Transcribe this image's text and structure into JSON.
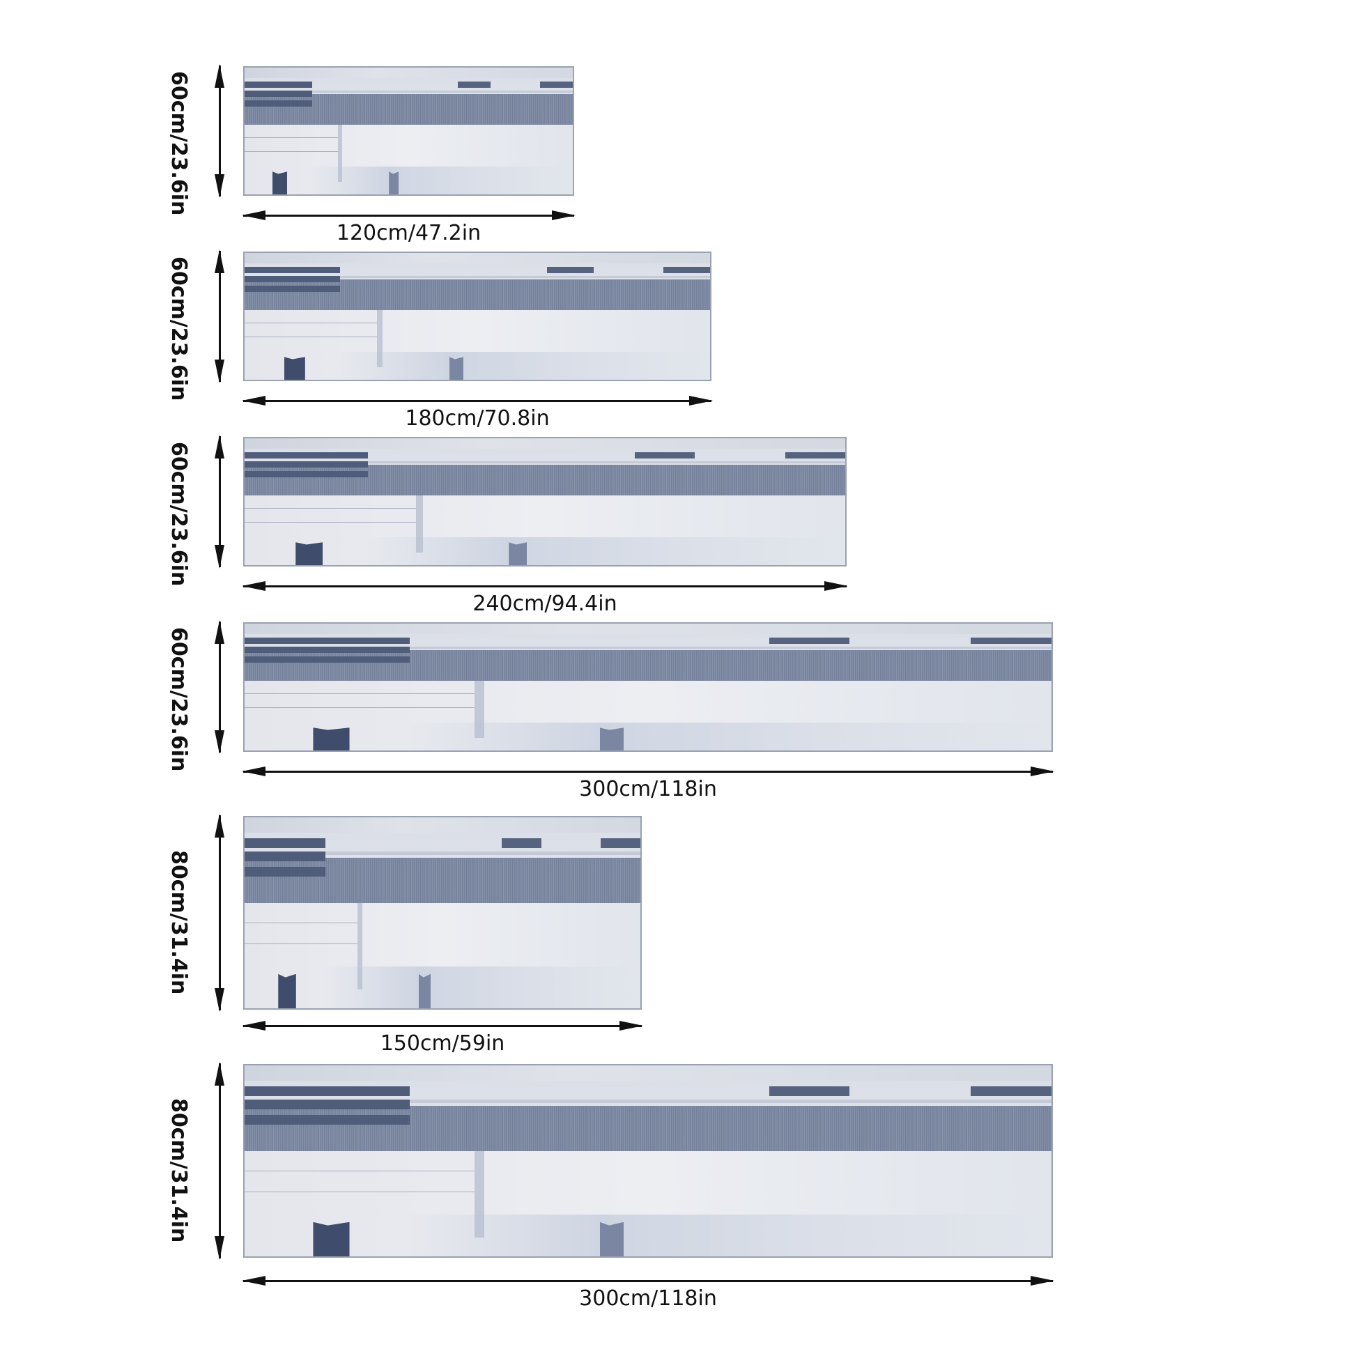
{
  "colors": {
    "rug_border": "#9aa2b1",
    "rug_light": "#e6e8ee",
    "rug_dark_band": "#6b7893",
    "rug_stripe": "#4f5c7a",
    "arrow": "#111111",
    "background": "#ffffff"
  },
  "rugs": [
    {
      "height_label": "60cm/23.6in",
      "width_label": "120cm/47.2in"
    },
    {
      "height_label": "60cm/23.6in",
      "width_label": "180cm/70.8in"
    },
    {
      "height_label": "60cm/23.6in",
      "width_label": "240cm/94.4in"
    },
    {
      "height_label": "60cm/23.6in",
      "width_label": "300cm/118in"
    },
    {
      "height_label": "80cm/31.4in",
      "width_label": "150cm/59in"
    },
    {
      "height_label": "80cm/31.4in",
      "width_label": "300cm/118in"
    }
  ]
}
